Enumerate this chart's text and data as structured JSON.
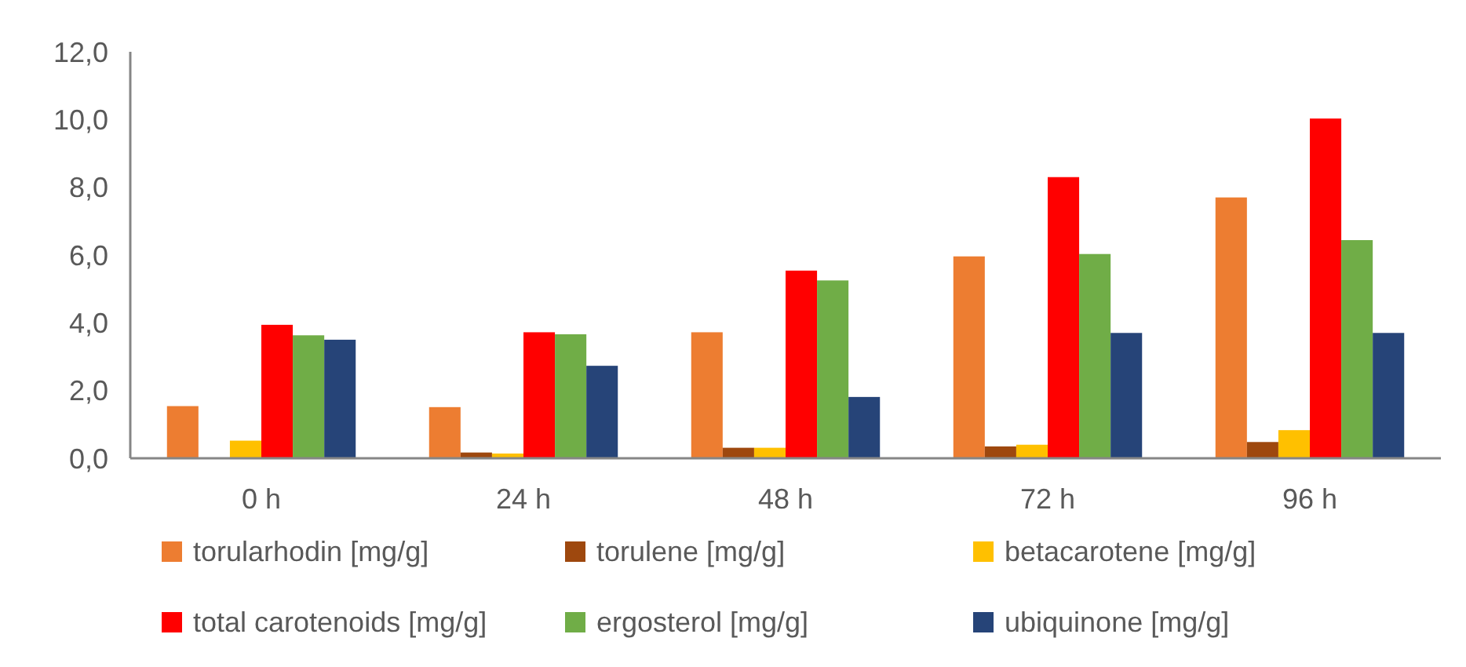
{
  "chart_data": {
    "type": "bar",
    "categories": [
      "0 h",
      "24 h",
      "48 h",
      "72 h",
      "96 h"
    ],
    "series": [
      {
        "name": "torularhodin [mg/g]",
        "color": "#ed7d31",
        "values": [
          1.54,
          1.51,
          3.72,
          5.96,
          7.7
        ]
      },
      {
        "name": "torulene [mg/g]",
        "color": "#9e480e",
        "values": [
          0,
          0.17,
          0.31,
          0.35,
          0.48
        ]
      },
      {
        "name": "betacarotene [mg/g]",
        "color": "#ffc000",
        "values": [
          0.52,
          0.14,
          0.31,
          0.4,
          0.83
        ]
      },
      {
        "name": "total carotenoids [mg/g]",
        "color": "#ff0000",
        "values": [
          3.94,
          3.72,
          5.54,
          8.3,
          10.03
        ]
      },
      {
        "name": "ergosterol [mg/g]",
        "color": "#70ad47",
        "values": [
          3.63,
          3.66,
          5.25,
          6.03,
          6.44
        ]
      },
      {
        "name": "ubiquinone [mg/g]",
        "color": "#264478",
        "values": [
          3.5,
          2.73,
          1.81,
          3.7,
          3.7
        ]
      }
    ],
    "ylim": [
      0,
      12
    ],
    "yticks": [
      {
        "value": 0,
        "label": "0,0"
      },
      {
        "value": 2,
        "label": "2,0"
      },
      {
        "value": 4,
        "label": "4,0"
      },
      {
        "value": 6,
        "label": "6,0"
      },
      {
        "value": 8,
        "label": "8,0"
      },
      {
        "value": 10,
        "label": "10,0"
      },
      {
        "value": 12,
        "label": "12,0"
      }
    ],
    "legend": "bottom"
  }
}
